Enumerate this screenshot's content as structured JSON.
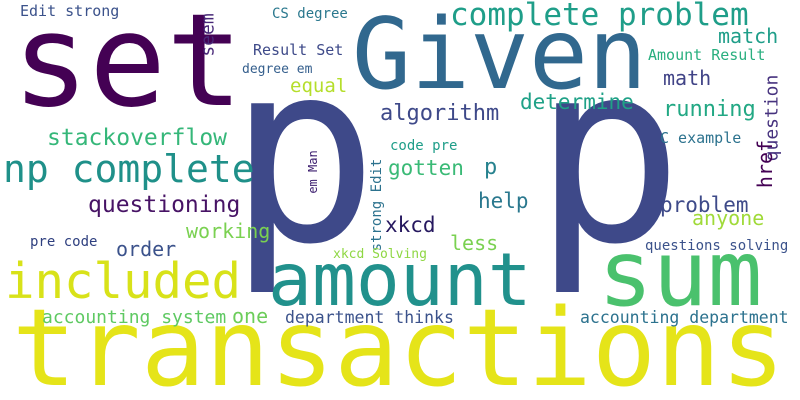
{
  "words": [
    {
      "text": "set",
      "color": "#440154"
    },
    {
      "text": "Given",
      "color": "#31688e"
    },
    {
      "text": "p",
      "color": "#3e4989"
    },
    {
      "text": "p",
      "color": "#3e4989"
    },
    {
      "text": "amount",
      "color": "#21918c"
    },
    {
      "text": "sum",
      "color": "#4ac16d"
    },
    {
      "text": "transactions",
      "color": "#e5e419"
    },
    {
      "text": "included",
      "color": "#d8e219"
    },
    {
      "text": "complete problem",
      "color": "#1f9e89"
    },
    {
      "text": "np complete",
      "color": "#1f9089"
    },
    {
      "text": "stackoverflow",
      "color": "#35b779"
    },
    {
      "text": "questioning",
      "color": "#471365"
    },
    {
      "text": "working",
      "color": "#7ad151"
    },
    {
      "text": "order",
      "color": "#3b528b"
    },
    {
      "text": "pre code",
      "color": "#2e3f7f"
    },
    {
      "text": "accounting system",
      "color": "#5ec962"
    },
    {
      "text": "one",
      "color": "#6ccd5a"
    },
    {
      "text": "department thinks",
      "color": "#3b528b"
    },
    {
      "text": "accounting department",
      "color": "#2c728e"
    },
    {
      "text": "seem",
      "color": "#482878"
    },
    {
      "text": "Result Set",
      "color": "#3e4a89"
    },
    {
      "text": "CS degree",
      "color": "#2a788e"
    },
    {
      "text": "Edit strong",
      "color": "#3b528b"
    },
    {
      "text": "degree em",
      "color": "#355f8d"
    },
    {
      "text": "equal",
      "color": "#b5de2b"
    },
    {
      "text": "algorithm",
      "color": "#3e4989"
    },
    {
      "text": "determine",
      "color": "#1fa187"
    },
    {
      "text": "match",
      "color": "#1f9e89"
    },
    {
      "text": "Amount Result",
      "color": "#29af7f"
    },
    {
      "text": "math",
      "color": "#414487"
    },
    {
      "text": "running",
      "color": "#22a884"
    },
    {
      "text": "question",
      "color": "#46327e"
    },
    {
      "text": "href",
      "color": "#440154"
    },
    {
      "text": "C example",
      "color": "#2c728e"
    },
    {
      "text": "code pre",
      "color": "#1f9e89"
    },
    {
      "text": "gotten",
      "color": "#3aba76"
    },
    {
      "text": "p",
      "color": "#26828e"
    },
    {
      "text": "help",
      "color": "#2a788e"
    },
    {
      "text": "problem",
      "color": "#3e4a89"
    },
    {
      "text": "anyone",
      "color": "#a0da39"
    },
    {
      "text": "xkcd",
      "color": "#26185f"
    },
    {
      "text": "less",
      "color": "#7ad151"
    },
    {
      "text": "strong Edit",
      "color": "#2c728e"
    },
    {
      "text": "em Man",
      "color": "#3b1c6e"
    },
    {
      "text": "xkcd Solving",
      "color": "#8fd744"
    },
    {
      "text": "questions solving",
      "color": "#3b528b"
    }
  ]
}
